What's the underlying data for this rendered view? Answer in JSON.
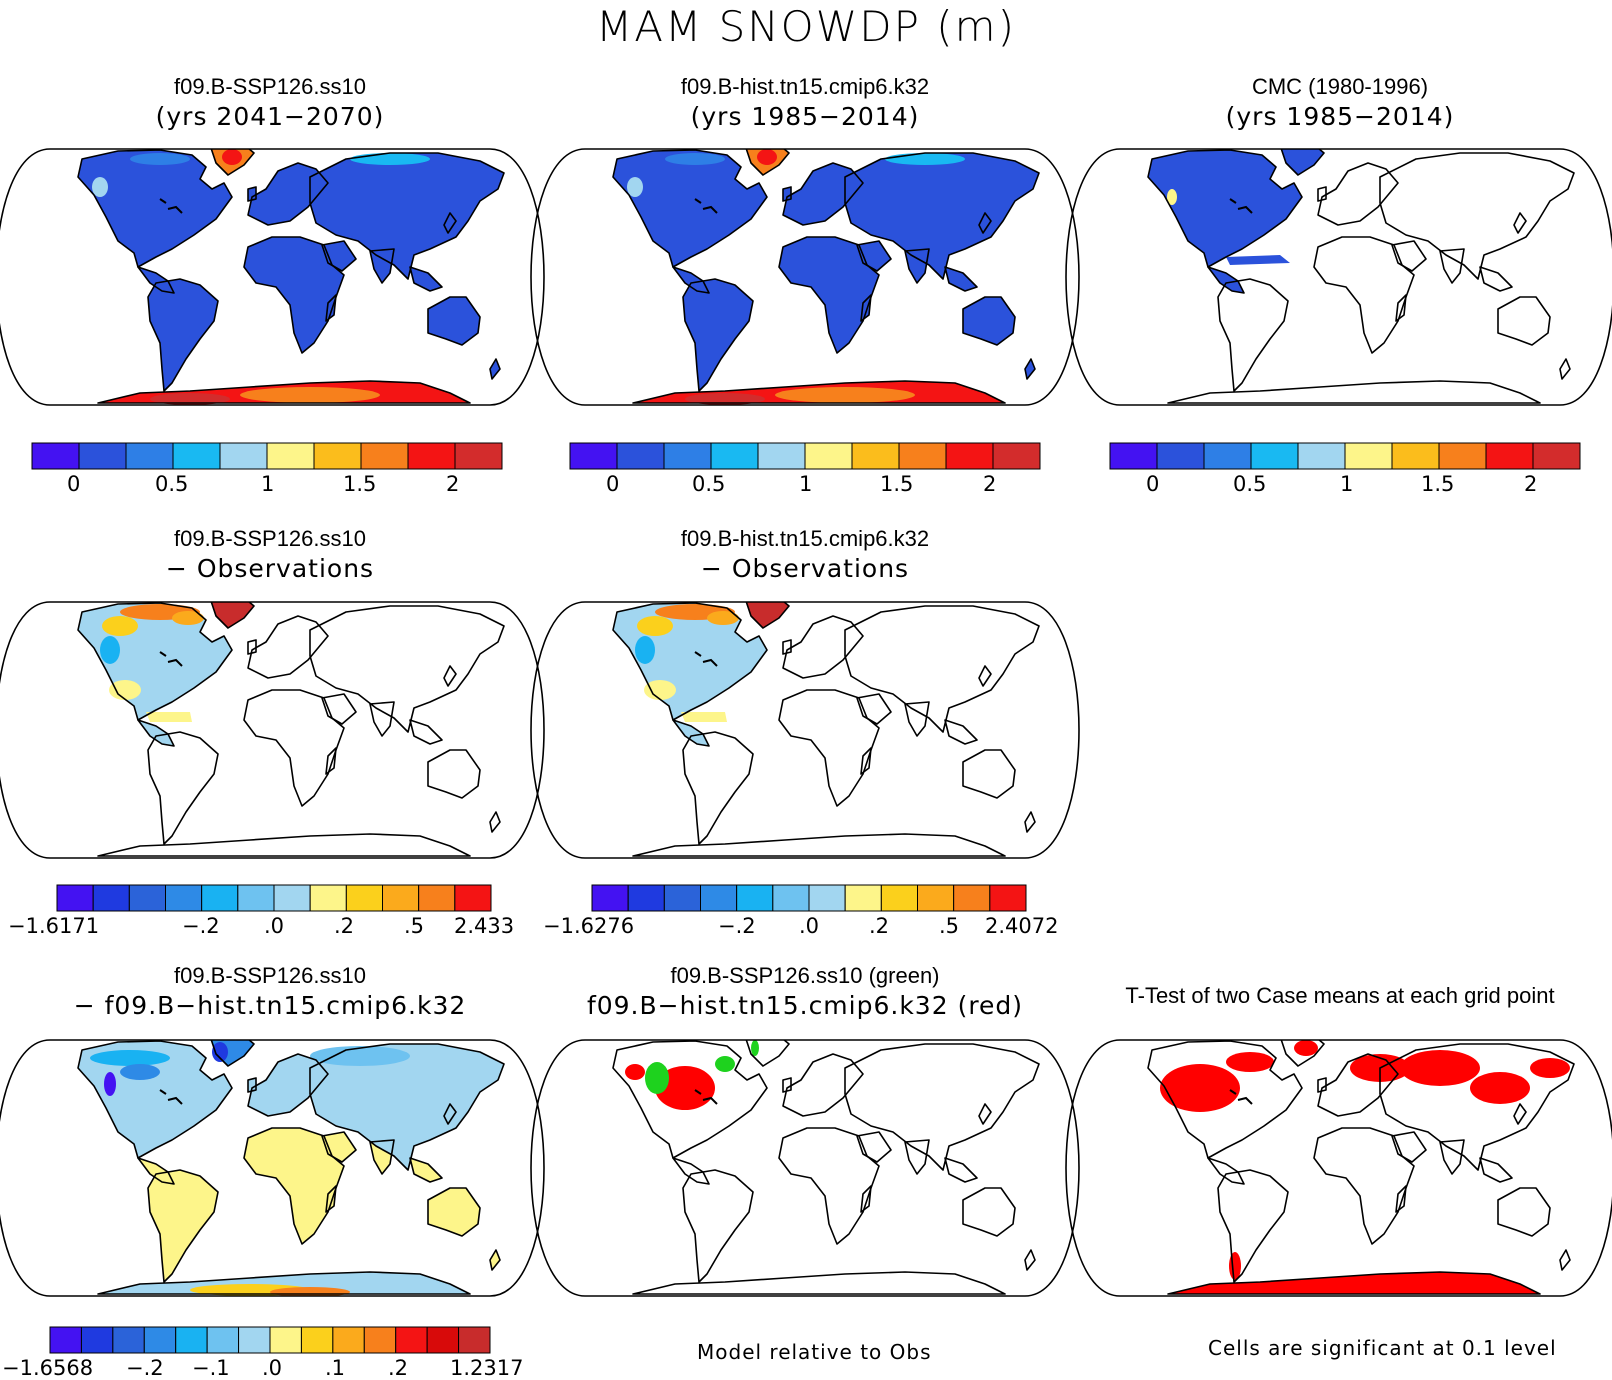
{
  "title": "MAM SNOWDP (m)",
  "colors": {
    "c10": [
      "#4412f2",
      "#2b52db",
      "#2e7fe6",
      "#19b9f2",
      "#a2d6f0",
      "#fdf58a",
      "#fbbd1c",
      "#f7801c",
      "#f41414",
      "#d32c2c"
    ],
    "c12": [
      "#4412f2",
      "#1f3ae0",
      "#2b63d9",
      "#2e8ae6",
      "#19b2f2",
      "#6ec2f0",
      "#a2d6f0",
      "#fdf58a",
      "#fbd01c",
      "#fbaa1c",
      "#f7801c",
      "#f41414",
      "#d80a0a",
      "#c82c2c"
    ],
    "green": "#1ed21e",
    "red": "#ff0000"
  },
  "panels": {
    "p1": {
      "line1": "f09.B-SSP126.ss10",
      "line2": "(yrs 2041−2070)"
    },
    "p2": {
      "line1": "f09.B-hist.tn15.cmip6.k32",
      "line2": "(yrs 1985−2014)"
    },
    "p3": {
      "line1": "CMC (1980-1996)",
      "line2": "(yrs 1985−2014)"
    },
    "p4": {
      "line1": "f09.B-SSP126.ss10",
      "line2": "− Observations"
    },
    "p5": {
      "line1": "f09.B-hist.tn15.cmip6.k32",
      "line2": "− Observations"
    },
    "p7": {
      "line1": "f09.B-SSP126.ss10",
      "line2": "− f09.B−hist.tn15.cmip6.k32"
    },
    "p8": {
      "line1": "f09.B-SSP126.ss10 (green)",
      "line2": "f09.B−hist.tn15.cmip6.k32 (red)"
    },
    "p9": {
      "line1": "T-Test of two Case means at each grid point"
    }
  },
  "colorbars": {
    "cb1": [
      "0",
      "0.5",
      "1",
      "1.5",
      "2"
    ],
    "cb2": [
      "0",
      "0.5",
      "1",
      "1.5",
      "2"
    ],
    "cb3": [
      "0",
      "0.5",
      "1",
      "1.5",
      "2"
    ],
    "cb4": [
      "−1.6171",
      "−.2",
      ".0",
      ".2",
      ".5",
      "2.433"
    ],
    "cb5": [
      "−1.6276",
      "−.2",
      ".0",
      ".2",
      ".5",
      "2.4072"
    ],
    "cb7": [
      "−1.6568",
      "−.2",
      "−.1",
      ".0",
      ".1",
      ".2",
      "1.2317"
    ]
  },
  "notes": {
    "model_rel": "Model relative to Obs",
    "cells_sig": "Cells are significant at 0.1 level"
  }
}
